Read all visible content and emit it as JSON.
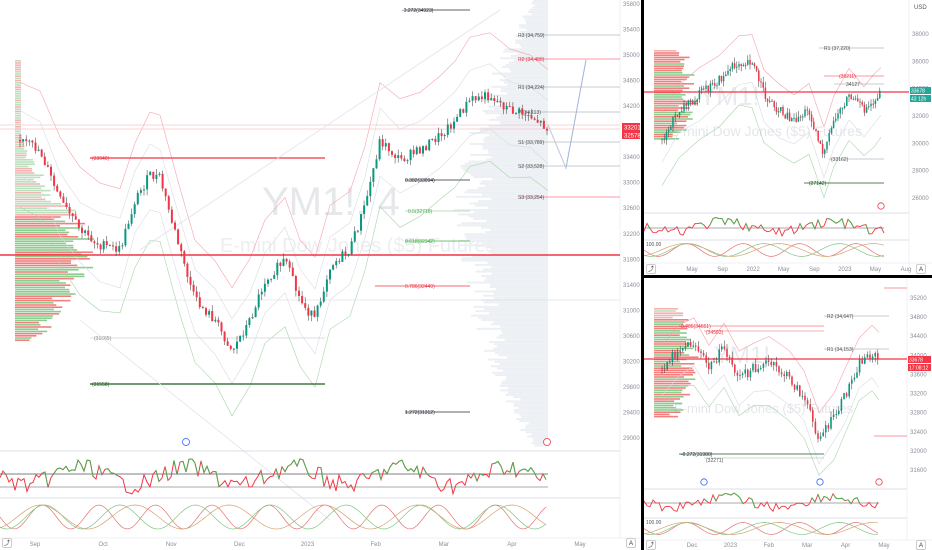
{
  "left_chart": {
    "symbol_watermark": "YM1!, 4",
    "description_watermark": "E-mini Dow Jones ($5) Futures",
    "price_axis": [
      "35800",
      "35400",
      "35000",
      "34600",
      "34200",
      "33800",
      "33400",
      "33000",
      "32600",
      "32200",
      "31800",
      "31400",
      "31000",
      "30600",
      "30200",
      "29800",
      "29400",
      "29000"
    ],
    "time_axis": [
      "Sep",
      "Oct",
      "Nov",
      "Dec",
      "2023",
      "Feb",
      "Mar",
      "Apr",
      "May"
    ],
    "levels": [
      {
        "label": "-0.272(34923)",
        "color": "#2a2e39"
      },
      {
        "label": "R3 (34,759)",
        "color": "#555"
      },
      {
        "label": "R2 (34,488)",
        "color": "#f23645"
      },
      {
        "label": "R1 (34,224)",
        "color": "#555"
      },
      {
        "label": "P (34,113)",
        "color": "#555"
      },
      {
        "label": "S1 (33,789)",
        "color": "#555"
      },
      {
        "label": "S2 (33,528)",
        "color": "#555"
      },
      {
        "label": "S3 (33,254)",
        "color": "#555"
      },
      {
        "label": "0.382(33094)",
        "color": "#2a2e39"
      },
      {
        "label": "0.5(32718)",
        "color": "#4caf50"
      },
      {
        "label": "0.618(32342)",
        "color": "#4caf50"
      },
      {
        "label": "0.786(32449)",
        "color": "#f23645"
      },
      {
        "label": "(33040)",
        "color": "#f23645"
      },
      {
        "label": "(31665)",
        "color": "#888"
      },
      {
        "label": "(31558)",
        "color": "#1b5e20"
      },
      {
        "label": "1.272(31312)",
        "color": "#2a2e39"
      }
    ],
    "price_tags": [
      "33201",
      "32578"
    ]
  },
  "top_right_chart": {
    "currency": "USD",
    "symbol_watermark": "YM1!",
    "description_watermark": "E-mini Dow Jones ($5) Futures",
    "price_axis": [
      "38000",
      "36000",
      "34000",
      "32000",
      "30000",
      "28000",
      "26000"
    ],
    "time_axis": [
      "May",
      "Sep",
      "2022",
      "May",
      "Sep",
      "2023",
      "May",
      "Aug"
    ],
    "levels": [
      {
        "label": "R1 (37,220)",
        "color": "#555"
      },
      {
        "label": "(35211)",
        "color": "#f23645"
      },
      {
        "label": "34127",
        "color": "#555"
      },
      {
        "label": "(33162)",
        "color": "#555"
      },
      {
        "label": "(27142)",
        "color": "#1b5e20"
      }
    ],
    "price_tags": [
      "33678",
      "43 12h"
    ],
    "osc_label": "100.00"
  },
  "bottom_right_chart": {
    "symbol_watermark": "YM1!",
    "description_watermark": "E-mini Dow Jones ($5) Futures",
    "price_axis": [
      "35200",
      "34800",
      "34400",
      "34000",
      "33600",
      "33200",
      "32800",
      "32400",
      "32000",
      "31600"
    ],
    "time_axis": [
      "Dec",
      "2023",
      "Feb",
      "Mar",
      "Apr",
      "May"
    ],
    "levels": [
      {
        "label": "0.786(34651)",
        "color": "#f23645"
      },
      {
        "label": "(34563)",
        "color": "#f23645"
      },
      {
        "label": "R2 (34,647)",
        "color": "#555"
      },
      {
        "label": "R1 (34,153)",
        "color": "#555"
      },
      {
        "label": "-0.272(31980)",
        "color": "#2a2e39"
      },
      {
        "label": "(32271)",
        "color": "#555"
      }
    ],
    "price_tags": [
      "33678",
      "17:08:12"
    ],
    "osc_label": "100.00"
  }
}
